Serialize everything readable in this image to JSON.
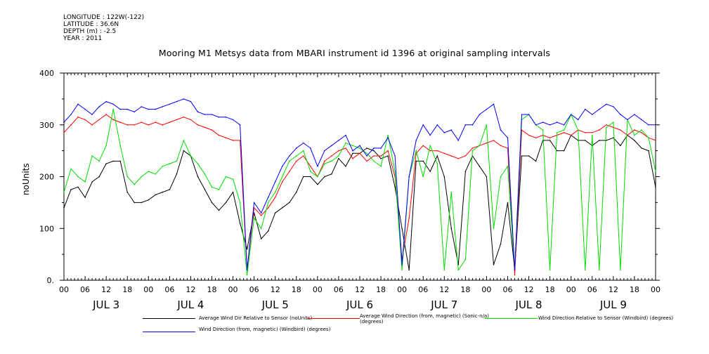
{
  "meta": {
    "longitude": "LONGITUDE : 122W(-122)",
    "latitude": "LATITUDE : 36.6N",
    "depth": "DEPTH (m) : -2.5",
    "year": "YEAR : 2011"
  },
  "chart_data": {
    "type": "line",
    "title": "Mooring M1 Metsys data from MBARI instrument id 1396 at original sampling intervals",
    "ylabel": "noUnits",
    "xlabel": "",
    "ylim": [
      0,
      400
    ],
    "yticks": [
      0,
      100,
      200,
      300,
      400
    ],
    "ytick_labels": [
      "0.",
      "100",
      "200",
      "300",
      "400"
    ],
    "xlim_hours": [
      0,
      168
    ],
    "hour_ticks": [
      "00",
      "06",
      "12",
      "18"
    ],
    "final_hour_tick": "00",
    "day_labels": [
      "JUL 3",
      "JUL 4",
      "JUL 5",
      "JUL 6",
      "JUL 7",
      "JUL 8",
      "JUL 9"
    ],
    "grid": false,
    "legend_position": "bottom",
    "series": [
      {
        "name": "Average Wind Dir Relative to Sensor (noUnits)",
        "color": "#000000",
        "x_hours": [
          0,
          2,
          4,
          6,
          8,
          10,
          12,
          14,
          16,
          18,
          20,
          22,
          24,
          26,
          28,
          30,
          32,
          34,
          36,
          38,
          40,
          42,
          44,
          46,
          48,
          50,
          52,
          54,
          56,
          58,
          60,
          62,
          64,
          66,
          68,
          70,
          72,
          74,
          76,
          78,
          80,
          82,
          84,
          86,
          88,
          90,
          92,
          94,
          96,
          98,
          100,
          102,
          104,
          106,
          108,
          110,
          112,
          114,
          116,
          118,
          120,
          122,
          124,
          126,
          128,
          130,
          132,
          134,
          136,
          138,
          140,
          142,
          144,
          146,
          148,
          150,
          152,
          154,
          156,
          158,
          160,
          162,
          164,
          166,
          168
        ],
        "values": [
          140,
          175,
          180,
          160,
          190,
          200,
          225,
          230,
          230,
          170,
          150,
          150,
          155,
          165,
          170,
          175,
          205,
          250,
          240,
          200,
          175,
          150,
          135,
          150,
          170,
          110,
          60,
          130,
          80,
          95,
          130,
          140,
          150,
          170,
          200,
          200,
          185,
          200,
          205,
          235,
          220,
          245,
          245,
          255,
          250,
          235,
          240,
          180,
          100,
          20,
          230,
          230,
          210,
          240,
          200,
          100,
          30,
          210,
          240,
          220,
          200,
          30,
          70,
          150,
          20,
          240,
          240,
          230,
          270,
          270,
          250,
          250,
          280,
          270,
          270,
          260,
          270,
          270,
          275,
          260,
          280,
          270,
          255,
          250,
          180
        ]
      },
      {
        "name": "Average Wind Direction (from, magnetic) (Sonic-n/a) (degrees)",
        "color": "#ff0000",
        "x_hours": [
          0,
          2,
          4,
          6,
          8,
          10,
          12,
          14,
          16,
          18,
          20,
          22,
          24,
          26,
          28,
          30,
          32,
          34,
          36,
          38,
          40,
          42,
          44,
          46,
          48,
          50,
          52,
          54,
          56,
          58,
          60,
          62,
          64,
          66,
          68,
          70,
          72,
          74,
          76,
          78,
          80,
          82,
          84,
          86,
          88,
          90,
          92,
          94,
          96,
          98,
          100,
          102,
          104,
          106,
          108,
          110,
          112,
          114,
          116,
          118,
          120,
          122,
          124,
          126,
          128,
          130,
          132,
          134,
          136,
          138,
          140,
          142,
          144,
          146,
          148,
          150,
          152,
          154,
          156,
          158,
          160,
          162,
          164,
          166,
          168
        ],
        "values": [
          285,
          300,
          315,
          310,
          300,
          310,
          320,
          310,
          305,
          300,
          300,
          305,
          300,
          305,
          300,
          305,
          310,
          315,
          310,
          300,
          295,
          290,
          280,
          275,
          270,
          270,
          20,
          140,
          125,
          140,
          160,
          190,
          210,
          230,
          240,
          220,
          200,
          230,
          240,
          250,
          255,
          235,
          245,
          230,
          240,
          240,
          250,
          200,
          40,
          120,
          245,
          260,
          250,
          250,
          245,
          240,
          235,
          240,
          255,
          260,
          265,
          270,
          260,
          255,
          10,
          290,
          280,
          275,
          280,
          275,
          280,
          285,
          280,
          290,
          285,
          285,
          290,
          300,
          295,
          290,
          280,
          290,
          285,
          275,
          270
        ]
      },
      {
        "name": "Wind Direction Relative to Sensor (Windbird) (degrees)",
        "color": "#00dd00",
        "x_hours": [
          0,
          2,
          4,
          6,
          8,
          10,
          12,
          14,
          16,
          18,
          20,
          22,
          24,
          26,
          28,
          30,
          32,
          34,
          36,
          38,
          40,
          42,
          44,
          46,
          48,
          50,
          52,
          54,
          56,
          58,
          60,
          62,
          64,
          66,
          68,
          70,
          72,
          74,
          76,
          78,
          80,
          82,
          84,
          86,
          88,
          90,
          92,
          94,
          96,
          98,
          100,
          102,
          104,
          106,
          108,
          110,
          112,
          114,
          116,
          118,
          120,
          122,
          124,
          126,
          128,
          130,
          132,
          134,
          136,
          138,
          140,
          142,
          144,
          146,
          148,
          150,
          152,
          154,
          156,
          158,
          160,
          162,
          164,
          166,
          168
        ],
        "values": [
          170,
          215,
          200,
          190,
          240,
          230,
          260,
          330,
          260,
          200,
          185,
          200,
          210,
          205,
          220,
          225,
          230,
          270,
          240,
          225,
          205,
          180,
          175,
          200,
          195,
          150,
          10,
          120,
          100,
          150,
          170,
          200,
          230,
          240,
          250,
          210,
          200,
          225,
          230,
          240,
          265,
          260,
          255,
          245,
          230,
          220,
          280,
          210,
          20,
          200,
          250,
          200,
          260,
          225,
          20,
          170,
          20,
          40,
          250,
          260,
          300,
          100,
          200,
          220,
          20,
          310,
          320,
          300,
          290,
          20,
          285,
          290,
          320,
          290,
          20,
          280,
          20,
          295,
          305,
          20,
          310,
          280,
          290,
          275,
          210
        ]
      },
      {
        "name": "Wind Direction (from, magnetic) (Windbird) (degrees)",
        "color": "#0000ff",
        "x_hours": [
          0,
          2,
          4,
          6,
          8,
          10,
          12,
          14,
          16,
          18,
          20,
          22,
          24,
          26,
          28,
          30,
          32,
          34,
          36,
          38,
          40,
          42,
          44,
          46,
          48,
          50,
          52,
          54,
          56,
          58,
          60,
          62,
          64,
          66,
          68,
          70,
          72,
          74,
          76,
          78,
          80,
          82,
          84,
          86,
          88,
          90,
          92,
          94,
          96,
          98,
          100,
          102,
          104,
          106,
          108,
          110,
          112,
          114,
          116,
          118,
          120,
          122,
          124,
          126,
          128,
          130,
          132,
          134,
          136,
          138,
          140,
          142,
          144,
          146,
          148,
          150,
          152,
          154,
          156,
          158,
          160,
          162,
          164,
          166,
          168
        ],
        "values": [
          305,
          320,
          340,
          330,
          320,
          335,
          345,
          340,
          330,
          330,
          325,
          335,
          330,
          330,
          335,
          340,
          345,
          350,
          345,
          325,
          320,
          320,
          315,
          315,
          310,
          300,
          20,
          150,
          130,
          160,
          190,
          220,
          240,
          255,
          265,
          255,
          220,
          250,
          260,
          270,
          280,
          250,
          260,
          240,
          255,
          255,
          275,
          240,
          30,
          200,
          270,
          300,
          280,
          300,
          285,
          290,
          270,
          300,
          300,
          320,
          330,
          340,
          290,
          275,
          20,
          320,
          320,
          300,
          305,
          300,
          305,
          300,
          320,
          310,
          330,
          320,
          330,
          340,
          335,
          320,
          310,
          320,
          310,
          300,
          300
        ]
      }
    ]
  }
}
